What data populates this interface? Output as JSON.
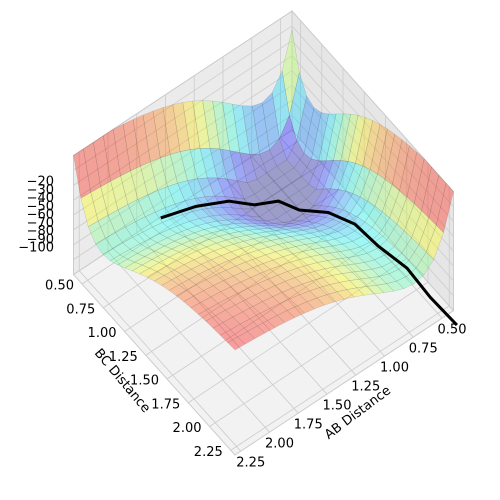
{
  "chart_data": {
    "type": "surface3d",
    "xlabel": "AB Distance",
    "ylabel": "BC Distance",
    "xlim": [
      0.4,
      2.3
    ],
    "ylim": [
      0.4,
      2.3
    ],
    "zlim": [
      -100,
      -20
    ],
    "xticks": [
      {
        "value": 0.5,
        "label": "0.50"
      },
      {
        "value": 0.75,
        "label": "0.75"
      },
      {
        "value": 1.0,
        "label": "1.00"
      },
      {
        "value": 1.25,
        "label": "1.25"
      },
      {
        "value": 1.5,
        "label": "1.50"
      },
      {
        "value": 1.75,
        "label": "1.75"
      },
      {
        "value": 2.0,
        "label": "2.00"
      },
      {
        "value": 2.25,
        "label": "2.25"
      }
    ],
    "yticks": [
      {
        "value": 0.5,
        "label": "0.50"
      },
      {
        "value": 0.75,
        "label": "0.75"
      },
      {
        "value": 1.0,
        "label": "1.00"
      },
      {
        "value": 1.25,
        "label": "1.25"
      },
      {
        "value": 1.5,
        "label": "1.50"
      },
      {
        "value": 1.75,
        "label": "1.75"
      },
      {
        "value": 2.0,
        "label": "2.00"
      },
      {
        "value": 2.25,
        "label": "2.25"
      }
    ],
    "zticks": [
      {
        "value": -20,
        "label": "−20"
      },
      {
        "value": -30,
        "label": "−30"
      },
      {
        "value": -40,
        "label": "−40"
      },
      {
        "value": -50,
        "label": "−50"
      },
      {
        "value": -60,
        "label": "−60"
      },
      {
        "value": -70,
        "label": "−70"
      },
      {
        "value": -80,
        "label": "−80"
      },
      {
        "value": -90,
        "label": "−90"
      },
      {
        "value": -100,
        "label": "−100"
      }
    ],
    "grid": true,
    "series": [
      {
        "color": "#000000",
        "x": [
          1.8,
          1.5,
          1.2,
          1.0,
          0.85,
          0.78,
          0.75,
          0.74,
          0.76,
          0.73,
          0.75,
          0.74
        ],
        "y": [
          0.75,
          0.76,
          0.74,
          0.77,
          0.85,
          1.0,
          1.3,
          1.6,
          1.9,
          2.2,
          2.5,
          2.8
        ]
      }
    ]
  }
}
